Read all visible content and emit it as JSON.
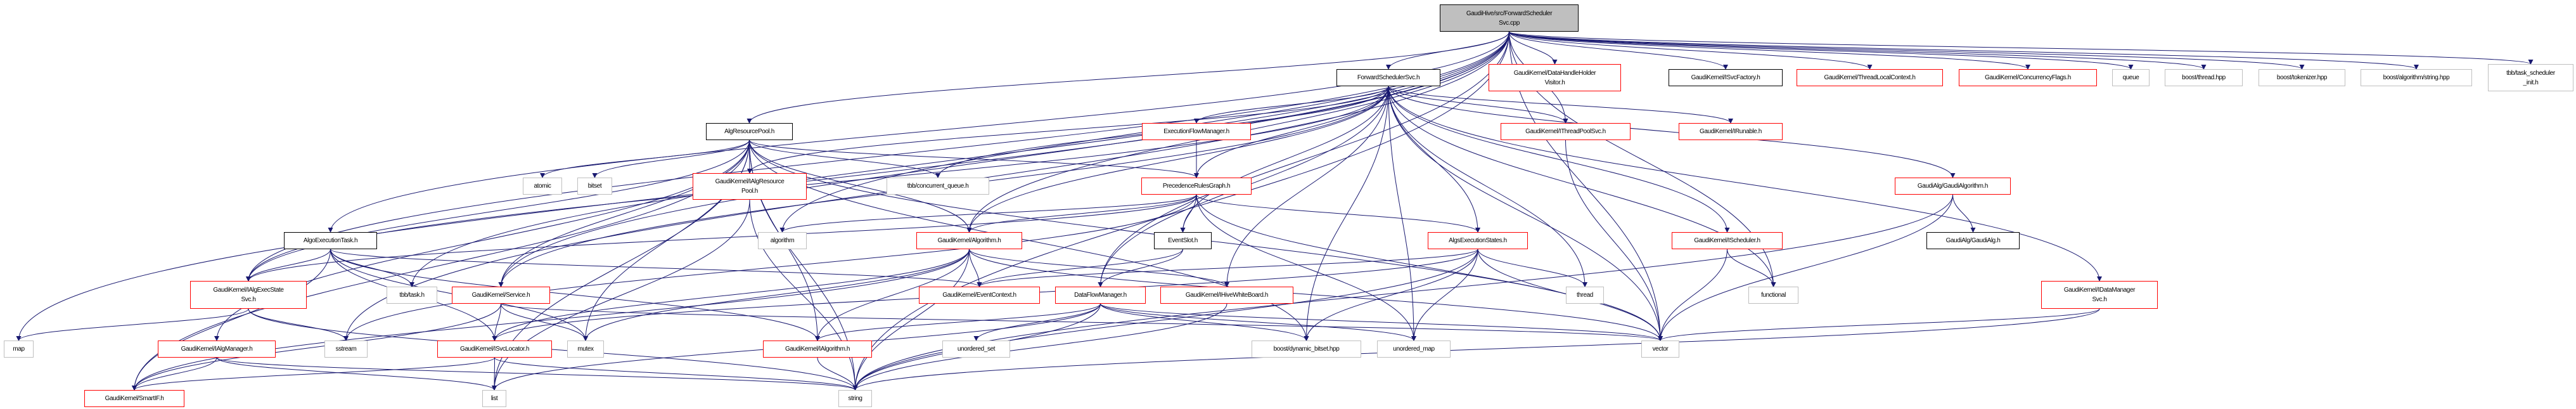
{
  "colors": {
    "edge": "#191970",
    "root_fill": "#bfbfbf",
    "documented_border": "#000000",
    "truncated_border": "#ff0000",
    "external_border": "#bfbfbf"
  },
  "nodes": [
    {
      "id": "root",
      "label": "GaudiHive/src/ForwardScheduler\nSvc.cpp",
      "kind": "root"
    },
    {
      "id": "fsh",
      "label": "ForwardSchedulerSvc.h",
      "kind": "doc"
    },
    {
      "id": "dhhv",
      "label": "GaudiKernel/DataHandleHolder\nVisitor.h",
      "kind": "trunc"
    },
    {
      "id": "isvcf",
      "label": "GaudiKernel/ISvcFactory.h",
      "kind": "doc"
    },
    {
      "id": "tlc",
      "label": "GaudiKernel/ThreadLocalContext.h",
      "kind": "trunc"
    },
    {
      "id": "cflags",
      "label": "GaudiKernel/ConcurrencyFlags.h",
      "kind": "trunc"
    },
    {
      "id": "queue",
      "label": "queue",
      "kind": "ext"
    },
    {
      "id": "bthread",
      "label": "boost/thread.hpp",
      "kind": "ext"
    },
    {
      "id": "btok",
      "label": "boost/tokenizer.hpp",
      "kind": "ext"
    },
    {
      "id": "bstr",
      "label": "boost/algorithm/string.hpp",
      "kind": "ext"
    },
    {
      "id": "tbbinit",
      "label": "tbb/task_scheduler\n_init.h",
      "kind": "ext"
    },
    {
      "id": "arp",
      "label": "AlgResourcePool.h",
      "kind": "doc"
    },
    {
      "id": "efm",
      "label": "ExecutionFlowManager.h",
      "kind": "trunc"
    },
    {
      "id": "itps",
      "label": "GaudiKernel/IThreadPoolSvc.h",
      "kind": "trunc"
    },
    {
      "id": "irun",
      "label": "GaudiKernel/IRunable.h",
      "kind": "trunc"
    },
    {
      "id": "atomic",
      "label": "atomic",
      "kind": "ext"
    },
    {
      "id": "bitset",
      "label": "bitset",
      "kind": "ext"
    },
    {
      "id": "iarp",
      "label": "GaudiKernel/IAlgResource\nPool.h",
      "kind": "trunc"
    },
    {
      "id": "tbbcq",
      "label": "tbb/concurrent_queue.h",
      "kind": "ext"
    },
    {
      "id": "prg",
      "label": "PrecedenceRulesGraph.h",
      "kind": "trunc"
    },
    {
      "id": "galgo",
      "label": "GaudiAlg/GaudiAlgorithm.h",
      "kind": "trunc"
    },
    {
      "id": "aet",
      "label": "AlgoExecutionTask.h",
      "kind": "doc"
    },
    {
      "id": "algorithm",
      "label": "algorithm",
      "kind": "ext"
    },
    {
      "id": "algh",
      "label": "GaudiKernel/Algorithm.h",
      "kind": "trunc"
    },
    {
      "id": "eslot",
      "label": "EventSlot.h",
      "kind": "doc"
    },
    {
      "id": "aes",
      "label": "AlgsExecutionStates.h",
      "kind": "trunc"
    },
    {
      "id": "isched",
      "label": "GaudiKernel/IScheduler.h",
      "kind": "trunc"
    },
    {
      "id": "galg",
      "label": "GaudiAlg/GaudiAlg.h",
      "kind": "doc"
    },
    {
      "id": "iaess",
      "label": "GaudiKernel/IAlgExecState\nSvc.h",
      "kind": "trunc"
    },
    {
      "id": "tbbtask",
      "label": "tbb/task.h",
      "kind": "ext"
    },
    {
      "id": "svc",
      "label": "GaudiKernel/Service.h",
      "kind": "trunc"
    },
    {
      "id": "evctx",
      "label": "GaudiKernel/EventContext.h",
      "kind": "trunc"
    },
    {
      "id": "dfm",
      "label": "DataFlowManager.h",
      "kind": "trunc"
    },
    {
      "id": "ihwb",
      "label": "GaudiKernel/IHiveWhiteBoard.h",
      "kind": "trunc"
    },
    {
      "id": "thread",
      "label": "thread",
      "kind": "ext"
    },
    {
      "id": "functional",
      "label": "functional",
      "kind": "ext"
    },
    {
      "id": "idms",
      "label": "GaudiKernel/IDataManager\nSvc.h",
      "kind": "trunc"
    },
    {
      "id": "map",
      "label": "map",
      "kind": "ext"
    },
    {
      "id": "iam",
      "label": "GaudiKernel/IAlgManager.h",
      "kind": "trunc"
    },
    {
      "id": "sstream",
      "label": "sstream",
      "kind": "ext"
    },
    {
      "id": "isl",
      "label": "GaudiKernel/ISvcLocator.h",
      "kind": "trunc"
    },
    {
      "id": "mutex",
      "label": "mutex",
      "kind": "ext"
    },
    {
      "id": "ialg",
      "label": "GaudiKernel/IAlgorithm.h",
      "kind": "trunc"
    },
    {
      "id": "uset",
      "label": "unordered_set",
      "kind": "ext"
    },
    {
      "id": "bdb",
      "label": "boost/dynamic_bitset.hpp",
      "kind": "ext"
    },
    {
      "id": "umap",
      "label": "unordered_map",
      "kind": "ext"
    },
    {
      "id": "vector",
      "label": "vector",
      "kind": "ext"
    },
    {
      "id": "smartif",
      "label": "GaudiKernel/SmartIF.h",
      "kind": "trunc"
    },
    {
      "id": "list",
      "label": "list",
      "kind": "ext"
    },
    {
      "id": "string",
      "label": "string",
      "kind": "ext"
    }
  ],
  "edges": [
    [
      "root",
      "fsh"
    ],
    [
      "root",
      "dhhv"
    ],
    [
      "root",
      "isvcf"
    ],
    [
      "root",
      "tlc"
    ],
    [
      "root",
      "cflags"
    ],
    [
      "root",
      "queue"
    ],
    [
      "root",
      "bthread"
    ],
    [
      "root",
      "btok"
    ],
    [
      "root",
      "bstr"
    ],
    [
      "root",
      "tbbinit"
    ],
    [
      "root",
      "arp"
    ],
    [
      "root",
      "aet"
    ],
    [
      "root",
      "map"
    ],
    [
      "root",
      "sstream"
    ],
    [
      "root",
      "algh"
    ],
    [
      "root",
      "dfm"
    ],
    [
      "root",
      "itps"
    ],
    [
      "root",
      "tbbtask"
    ],
    [
      "root",
      "svc"
    ],
    [
      "root",
      "iaess"
    ],
    [
      "root",
      "functional"
    ],
    [
      "root",
      "vector"
    ],
    [
      "root",
      "string"
    ],
    [
      "root",
      "algorithm"
    ],
    [
      "fsh",
      "efm"
    ],
    [
      "fsh",
      "itps"
    ],
    [
      "fsh",
      "irun"
    ],
    [
      "fsh",
      "galgo"
    ],
    [
      "fsh",
      "isched"
    ],
    [
      "fsh",
      "aes"
    ],
    [
      "fsh",
      "eslot"
    ],
    [
      "fsh",
      "ihwb"
    ],
    [
      "fsh",
      "umap"
    ],
    [
      "fsh",
      "thread"
    ],
    [
      "fsh",
      "functional"
    ],
    [
      "fsh",
      "vector"
    ],
    [
      "fsh",
      "tbbcq"
    ],
    [
      "fsh",
      "algh"
    ],
    [
      "fsh",
      "svc"
    ],
    [
      "fsh",
      "iaess"
    ],
    [
      "fsh",
      "iarp"
    ],
    [
      "fsh",
      "dfm"
    ],
    [
      "fsh",
      "bdb"
    ],
    [
      "fsh",
      "idms"
    ],
    [
      "fsh",
      "prg"
    ],
    [
      "arp",
      "atomic"
    ],
    [
      "arp",
      "bitset"
    ],
    [
      "arp",
      "iarp"
    ],
    [
      "arp",
      "svc"
    ],
    [
      "arp",
      "ialg"
    ],
    [
      "arp",
      "list"
    ],
    [
      "arp",
      "string"
    ],
    [
      "arp",
      "mutex"
    ],
    [
      "arp",
      "tbbcq"
    ],
    [
      "arp",
      "prg"
    ],
    [
      "arp",
      "algh"
    ],
    [
      "arp",
      "vector"
    ],
    [
      "arp",
      "bdb"
    ],
    [
      "arp",
      "iam"
    ],
    [
      "arp",
      "smartif"
    ],
    [
      "arp",
      "iaess"
    ],
    [
      "aet",
      "iaess"
    ],
    [
      "aet",
      "tbbtask"
    ],
    [
      "aet",
      "isl"
    ],
    [
      "aet",
      "ialg"
    ],
    [
      "aet",
      "evctx"
    ],
    [
      "aet",
      "smartif"
    ],
    [
      "aet",
      "mutex"
    ],
    [
      "efm",
      "prg"
    ],
    [
      "prg",
      "algh"
    ],
    [
      "prg",
      "eslot"
    ],
    [
      "prg",
      "aes"
    ],
    [
      "prg",
      "algorithm"
    ],
    [
      "prg",
      "umap"
    ],
    [
      "prg",
      "vector"
    ],
    [
      "prg",
      "sstream"
    ],
    [
      "prg",
      "iaess"
    ],
    [
      "algh",
      "evctx"
    ],
    [
      "algh",
      "ihwb"
    ],
    [
      "algh",
      "ialg"
    ],
    [
      "algh",
      "vector"
    ],
    [
      "algh",
      "string"
    ],
    [
      "algh",
      "isl"
    ],
    [
      "algh",
      "mutex"
    ],
    [
      "algh",
      "smartif"
    ],
    [
      "eslot",
      "evctx"
    ],
    [
      "eslot",
      "dfm"
    ],
    [
      "aes",
      "bdb"
    ],
    [
      "aes",
      "umap"
    ],
    [
      "aes",
      "thread"
    ],
    [
      "aes",
      "vector"
    ],
    [
      "aes",
      "string"
    ],
    [
      "aes",
      "evctx"
    ],
    [
      "aes",
      "isl"
    ],
    [
      "dfm",
      "ialg"
    ],
    [
      "dfm",
      "uset"
    ],
    [
      "dfm",
      "bdb"
    ],
    [
      "dfm",
      "umap"
    ],
    [
      "dfm",
      "vector"
    ],
    [
      "dfm",
      "string"
    ],
    [
      "dfm",
      "list"
    ],
    [
      "ihwb",
      "string"
    ],
    [
      "iaess",
      "map"
    ],
    [
      "iaess",
      "sstream"
    ],
    [
      "iaess",
      "string"
    ],
    [
      "svc",
      "isl"
    ],
    [
      "svc",
      "mutex"
    ],
    [
      "svc",
      "smartif"
    ],
    [
      "svc",
      "vector"
    ],
    [
      "isl",
      "list"
    ],
    [
      "isl",
      "smartif"
    ],
    [
      "isl",
      "string"
    ],
    [
      "iam",
      "smartif"
    ],
    [
      "iam",
      "list"
    ],
    [
      "iam",
      "string"
    ],
    [
      "ialg",
      "string"
    ],
    [
      "iarp",
      "list"
    ],
    [
      "iarp",
      "string"
    ],
    [
      "itps",
      "vector"
    ],
    [
      "isched",
      "vector"
    ],
    [
      "isched",
      "functional"
    ],
    [
      "galgo",
      "galg"
    ],
    [
      "galgo",
      "vector"
    ],
    [
      "galgo",
      "string"
    ],
    [
      "idms",
      "vector"
    ],
    [
      "idms",
      "string"
    ]
  ]
}
